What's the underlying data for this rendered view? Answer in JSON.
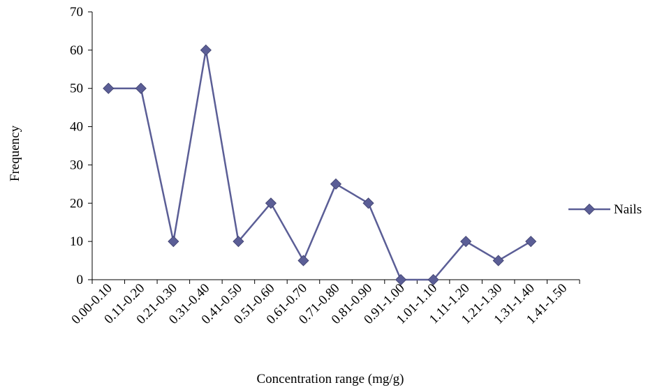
{
  "chart_data": {
    "type": "line",
    "title": "",
    "xlabel": "Concentration range (mg/g)",
    "ylabel": "Frequency",
    "ylim": [
      0,
      70
    ],
    "yticks": [
      0,
      10,
      20,
      30,
      40,
      50,
      60,
      70
    ],
    "categories": [
      "0.00-0.10",
      "0.11-0.20",
      "0.21-0.30",
      "0.31-0.40",
      "0.41-0.50",
      "0.51-0.60",
      "0.61-0.70",
      "0.71-0.80",
      "0.81-0.90",
      "0.91-1.00",
      "1.01-1.10",
      "1.11-1.20",
      "1.21-1.30",
      "1.31-1.40",
      "1.41-1.50"
    ],
    "series": [
      {
        "name": "Nails",
        "values": [
          50,
          50,
          10,
          60,
          10,
          20,
          5,
          25,
          20,
          0,
          0,
          10,
          5,
          10,
          null
        ],
        "color": "#5B5E96",
        "marker": "diamond"
      }
    ],
    "grid": false,
    "legend_position": "right"
  }
}
